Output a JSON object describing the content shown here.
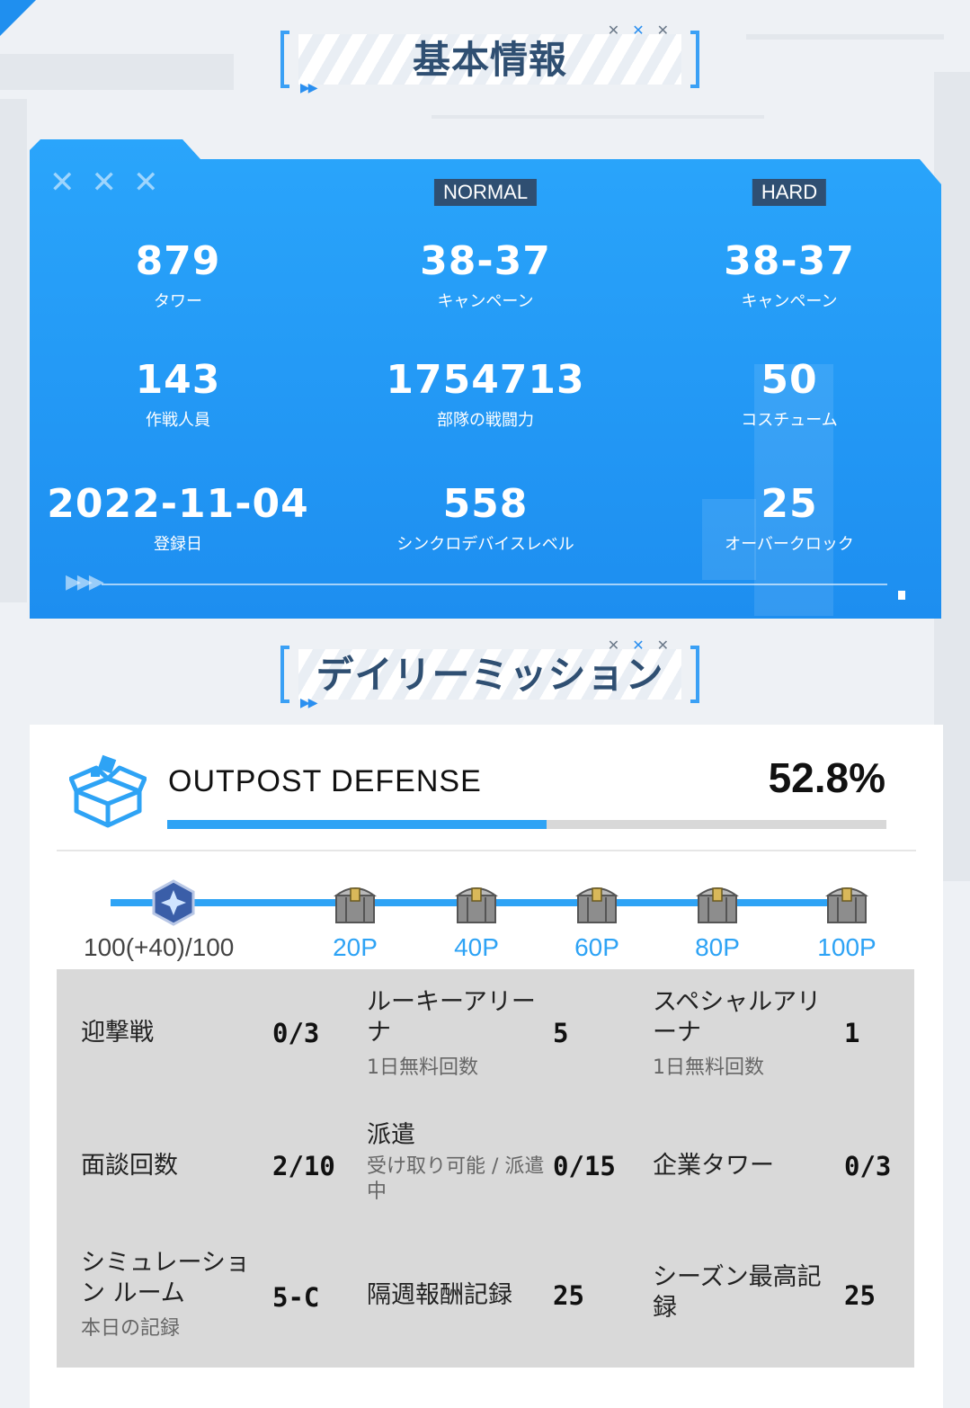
{
  "basic_info": {
    "title": "基本情報",
    "modes": {
      "normal": "NORMAL",
      "hard": "HARD"
    },
    "stats": {
      "tower": {
        "value": "879",
        "label": "タワー"
      },
      "campaign_normal": {
        "value": "38-37",
        "label": "キャンペーン"
      },
      "campaign_hard": {
        "value": "38-37",
        "label": "キャンペーン"
      },
      "operators": {
        "value": "143",
        "label": "作戦人員"
      },
      "squad_power": {
        "value": "1754713",
        "label": "部隊の戦闘力"
      },
      "costumes": {
        "value": "50",
        "label": "コスチューム"
      },
      "registered": {
        "value": "2022-11-04",
        "label": "登録日"
      },
      "synchro_level": {
        "value": "558",
        "label": "シンクロデバイスレベル"
      },
      "overclock": {
        "value": "25",
        "label": "オーバークロック"
      }
    }
  },
  "daily_mission": {
    "title": "デイリーミッション",
    "outpost": {
      "title": "OUTPOST DEFENSE",
      "percent_text": "52.8%",
      "progress_fraction": 0.528
    },
    "reward_track": {
      "points": "100(+40)/100",
      "milestones": [
        "20P",
        "40P",
        "60P",
        "80P",
        "100P"
      ]
    },
    "missions": [
      {
        "name": "迎撃戦",
        "sub": "",
        "value": "0/3"
      },
      {
        "name": "ルーキーアリーナ",
        "sub": "1日無料回数",
        "value": "5"
      },
      {
        "name": "スペシャルアリーナ",
        "sub": "1日無料回数",
        "value": "1"
      },
      {
        "name": "面談回数",
        "sub": "",
        "value": "2/10"
      },
      {
        "name": "派遣",
        "sub": "受け取り可能 / 派遣中",
        "value": "0/15"
      },
      {
        "name": "企業タワー",
        "sub": "",
        "value": "0/3"
      },
      {
        "name": "シミュレーション ルーム",
        "sub": "本日の記録",
        "value": "5-C"
      },
      {
        "name": "隔週報酬記録",
        "sub": "",
        "value": "25"
      },
      {
        "name": "シーズン最高記録",
        "sub": "",
        "value": "25"
      }
    ]
  },
  "colors": {
    "accent_blue": "#2ea3f5",
    "panel_blue": "#1d8ef0",
    "header_text": "#2f4f72"
  }
}
